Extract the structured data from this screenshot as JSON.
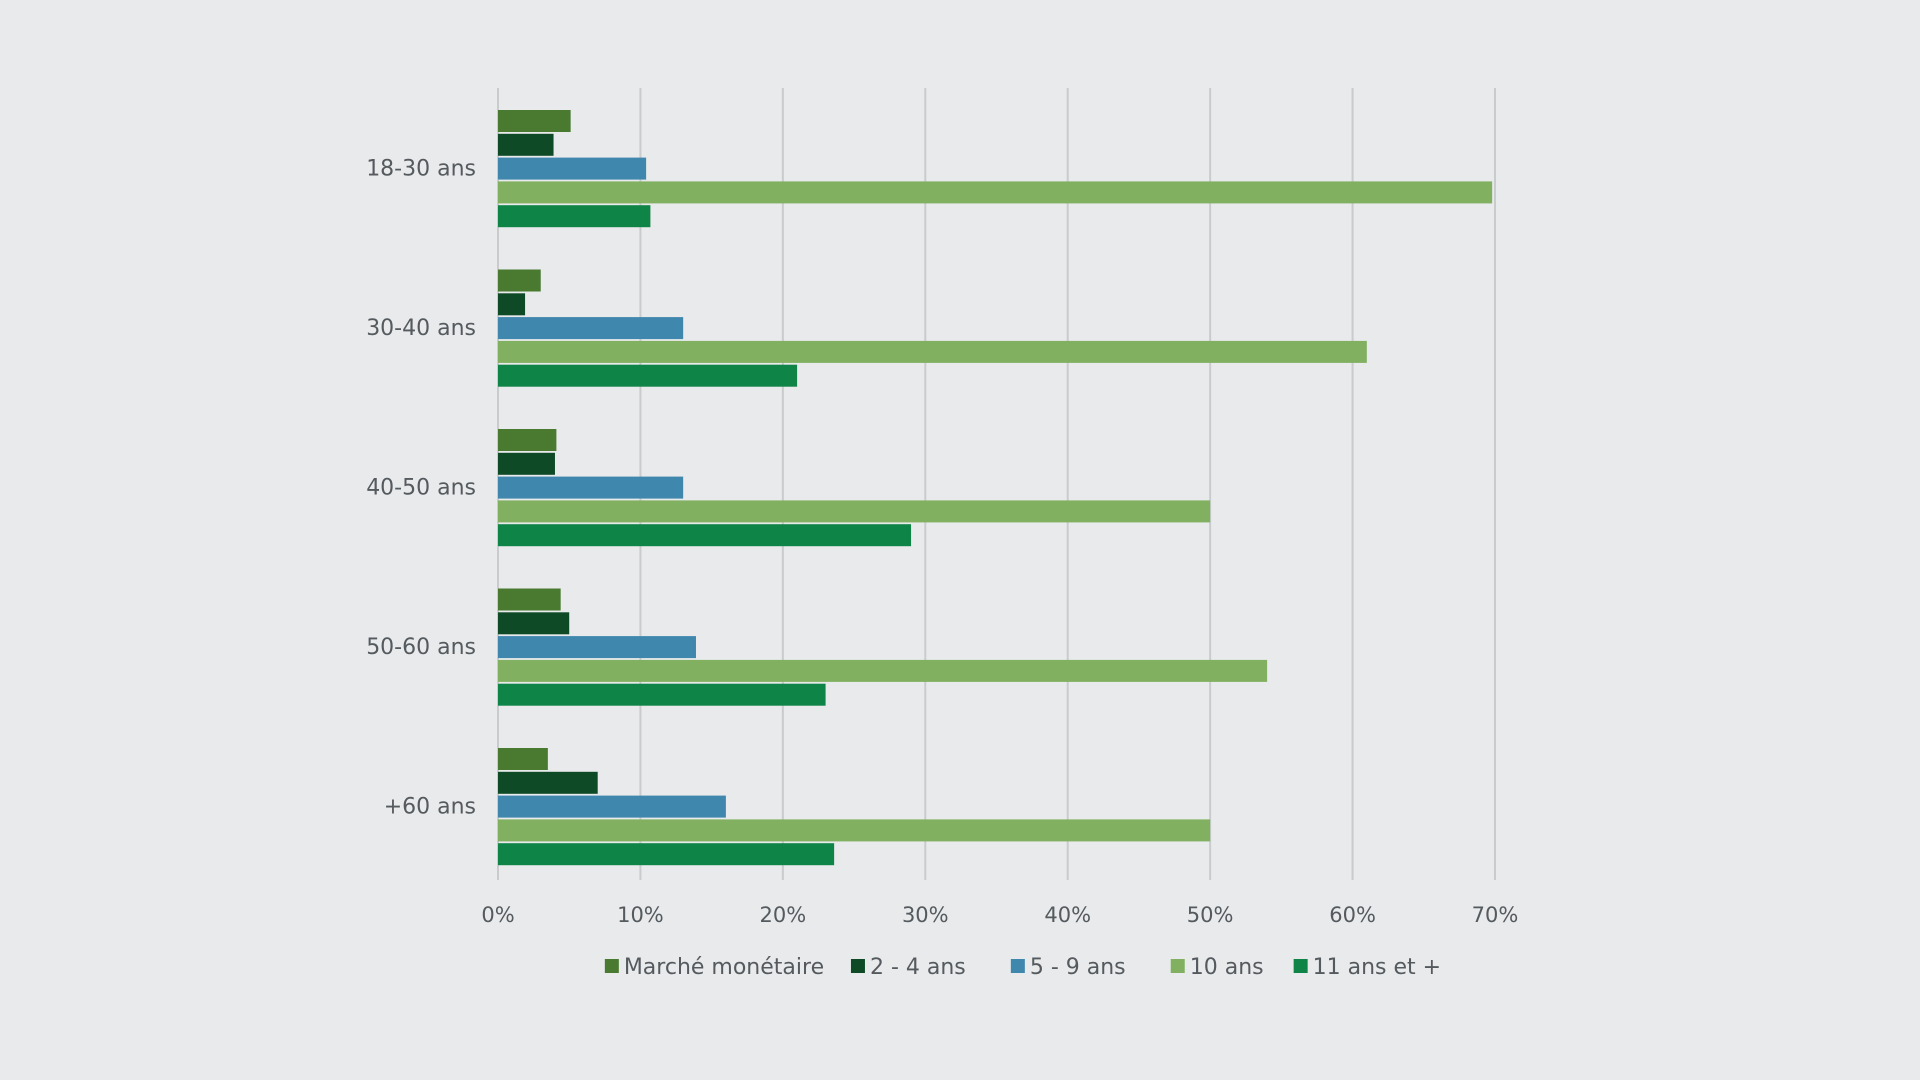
{
  "chart_data": {
    "type": "bar",
    "orientation": "horizontal",
    "title": "",
    "xlabel": "",
    "ylabel": "",
    "categories": [
      "18-30 ans",
      "30-40 ans",
      "40-50 ans",
      "50-60 ans",
      "+60 ans"
    ],
    "series": [
      {
        "name": "Marché monétaire",
        "color": "#4a7a30",
        "values": [
          5.1,
          3.0,
          4.1,
          4.4,
          3.5
        ]
      },
      {
        "name": "2 - 4 ans",
        "color": "#0f4a26",
        "values": [
          3.9,
          1.9,
          4.0,
          5.0,
          7.0
        ]
      },
      {
        "name": "5 - 9 ans",
        "color": "#3f87ad",
        "values": [
          10.4,
          13.0,
          13.0,
          13.9,
          16.0
        ]
      },
      {
        "name": "10 ans",
        "color": "#80b060",
        "values": [
          69.8,
          61.0,
          50.0,
          54.0,
          50.0
        ]
      },
      {
        "name": "11 ans et +",
        "color": "#0f8447",
        "values": [
          10.7,
          21.0,
          29.0,
          23.0,
          23.6
        ]
      }
    ],
    "xlim": [
      0,
      70
    ],
    "x_ticks": [
      {
        "value": 0,
        "label": "0%"
      },
      {
        "value": 10,
        "label": "10%"
      },
      {
        "value": 20,
        "label": "20%"
      },
      {
        "value": 30,
        "label": "30%"
      },
      {
        "value": 40,
        "label": "40%"
      },
      {
        "value": 50,
        "label": "50%"
      },
      {
        "value": 60,
        "label": "60%"
      },
      {
        "value": 70,
        "label": "70%"
      }
    ],
    "grid": true,
    "legend_position": "bottom"
  }
}
